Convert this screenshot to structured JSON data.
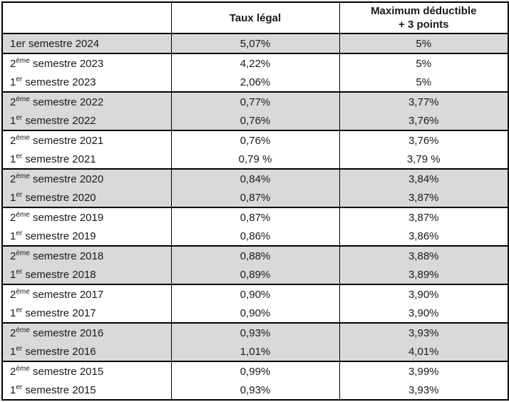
{
  "table": {
    "headers": {
      "col1": "",
      "col2": "Taux légal",
      "col3_line1": "Maximum déductible",
      "col3_line2": "+ 3 points"
    },
    "rows": [
      {
        "pre": "1er",
        "sup": "",
        "post": " semestre 2024",
        "taux": "5,07%",
        "max": "5%",
        "shaded": true,
        "group_start": true
      },
      {
        "pre": "2",
        "sup": "ème",
        "post": " semestre 2023",
        "taux": "4,22%",
        "max": "5%",
        "shaded": false,
        "group_start": true
      },
      {
        "pre": "1",
        "sup": "er",
        "post": " semestre 2023",
        "taux": "2,06%",
        "max": "5%",
        "shaded": false,
        "group_start": false
      },
      {
        "pre": "2",
        "sup": "ème",
        "post": " semestre 2022",
        "taux": "0,77%",
        "max": "3,77%",
        "shaded": true,
        "group_start": true
      },
      {
        "pre": "1",
        "sup": "er",
        "post": " semestre 2022",
        "taux": "0,76%",
        "max": "3,76%",
        "shaded": true,
        "group_start": false
      },
      {
        "pre": "2",
        "sup": "ème",
        "post": " semestre 2021",
        "taux": "0,76%",
        "max": "3,76%",
        "shaded": false,
        "group_start": true
      },
      {
        "pre": "1",
        "sup": "er",
        "post": " semestre 2021",
        "taux": "0,79 %",
        "max": "3,79 %",
        "shaded": false,
        "group_start": false
      },
      {
        "pre": "2",
        "sup": "ème",
        "post": " semestre 2020",
        "taux": "0,84%",
        "max": "3,84%",
        "shaded": true,
        "group_start": true
      },
      {
        "pre": "1",
        "sup": "er",
        "post": " semestre 2020",
        "taux": "0,87%",
        "max": "3,87%",
        "shaded": true,
        "group_start": false
      },
      {
        "pre": "2",
        "sup": "ème",
        "post": " semestre 2019",
        "taux": "0,87%",
        "max": "3,87%",
        "shaded": false,
        "group_start": true
      },
      {
        "pre": "1",
        "sup": "er",
        "post": " semestre 2019",
        "taux": "0,86%",
        "max": "3,86%",
        "shaded": false,
        "group_start": false
      },
      {
        "pre": "2",
        "sup": "ème",
        "post": " semestre 2018",
        "taux": "0,88%",
        "max": "3,88%",
        "shaded": true,
        "group_start": true
      },
      {
        "pre": "1",
        "sup": "er",
        "post": " semestre 2018",
        "taux": "0,89%",
        "max": "3,89%",
        "shaded": true,
        "group_start": false
      },
      {
        "pre": "2",
        "sup": "ème",
        "post": " semestre 2017",
        "taux": "0,90%",
        "max": "3,90%",
        "shaded": false,
        "group_start": true
      },
      {
        "pre": "1",
        "sup": "er",
        "post": " semestre 2017",
        "taux": "0,90%",
        "max": "3,90%",
        "shaded": false,
        "group_start": false
      },
      {
        "pre": "2",
        "sup": "ème",
        "post": " semestre 2016",
        "taux": "0,93%",
        "max": "3,93%",
        "shaded": true,
        "group_start": true
      },
      {
        "pre": "1",
        "sup": "er",
        "post": " semestre 2016",
        "taux": "1,01%",
        "max": "4,01%",
        "shaded": true,
        "group_start": false
      },
      {
        "pre": "2",
        "sup": "ème",
        "post": " semestre 2015",
        "taux": "0,99%",
        "max": "3,99%",
        "shaded": false,
        "group_start": true
      },
      {
        "pre": "1",
        "sup": "er",
        "post": " semestre 2015",
        "taux": "0,93%",
        "max": "3,93%",
        "shaded": false,
        "group_start": false
      }
    ],
    "colors": {
      "shaded_row_bg": "#d9d9d9",
      "border": "#000000",
      "text": "#1a1a1a"
    }
  },
  "chart_data": {
    "type": "table",
    "title": "",
    "columns": [
      "",
      "Taux légal",
      "Maximum déductible + 3 points"
    ],
    "rows": [
      [
        "1er semestre 2024",
        "5,07%",
        "5%"
      ],
      [
        "2ème semestre 2023",
        "4,22%",
        "5%"
      ],
      [
        "1er semestre 2023",
        "2,06%",
        "5%"
      ],
      [
        "2ème semestre 2022",
        "0,77%",
        "3,77%"
      ],
      [
        "1er semestre 2022",
        "0,76%",
        "3,76%"
      ],
      [
        "2ème semestre 2021",
        "0,76%",
        "3,76%"
      ],
      [
        "1er semestre 2021",
        "0,79 %",
        "3,79 %"
      ],
      [
        "2ème semestre 2020",
        "0,84%",
        "3,84%"
      ],
      [
        "1er semestre 2020",
        "0,87%",
        "3,87%"
      ],
      [
        "2ème semestre 2019",
        "0,87%",
        "3,87%"
      ],
      [
        "1er semestre 2019",
        "0,86%",
        "3,86%"
      ],
      [
        "2ème semestre 2018",
        "0,88%",
        "3,88%"
      ],
      [
        "1er semestre 2018",
        "0,89%",
        "3,89%"
      ],
      [
        "2ème semestre 2017",
        "0,90%",
        "3,90%"
      ],
      [
        "1er semestre 2017",
        "0,90%",
        "3,90%"
      ],
      [
        "2ème semestre 2016",
        "0,93%",
        "3,93%"
      ],
      [
        "1er semestre 2016",
        "1,01%",
        "4,01%"
      ],
      [
        "2ème semestre 2015",
        "0,99%",
        "3,99%"
      ],
      [
        "1er semestre 2015",
        "0,93%",
        "3,93%"
      ]
    ]
  }
}
